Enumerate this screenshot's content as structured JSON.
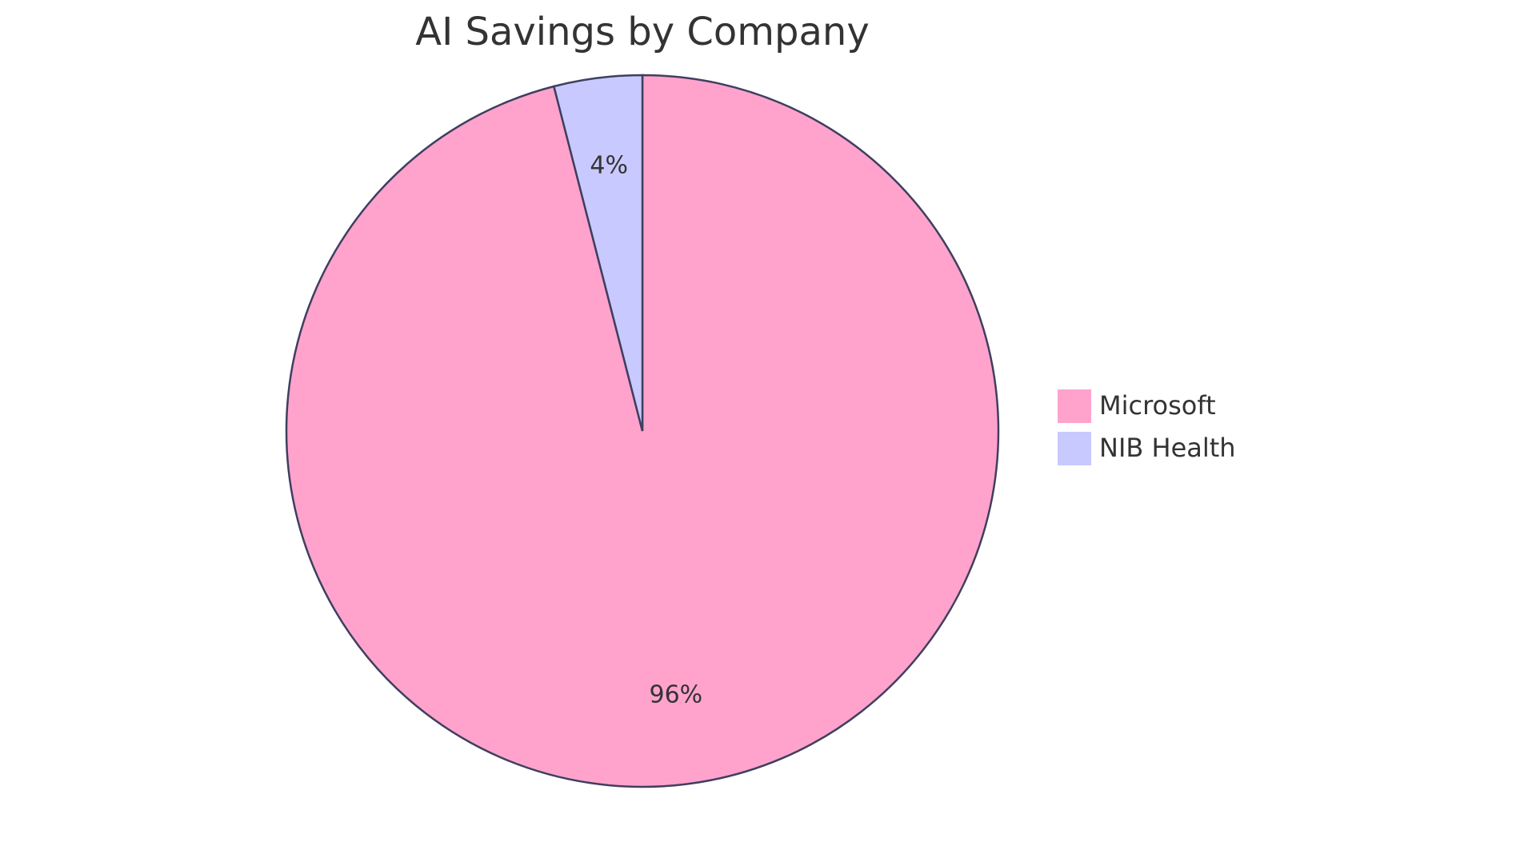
{
  "chart_data": {
    "type": "pie",
    "title": "AI Savings by Company",
    "categories": [
      "Microsoft",
      "NIB Health"
    ],
    "values": [
      96,
      4
    ],
    "value_labels": [
      "96%",
      "4%"
    ],
    "colors": [
      "#ffa3cd",
      "#c8c9ff"
    ]
  }
}
